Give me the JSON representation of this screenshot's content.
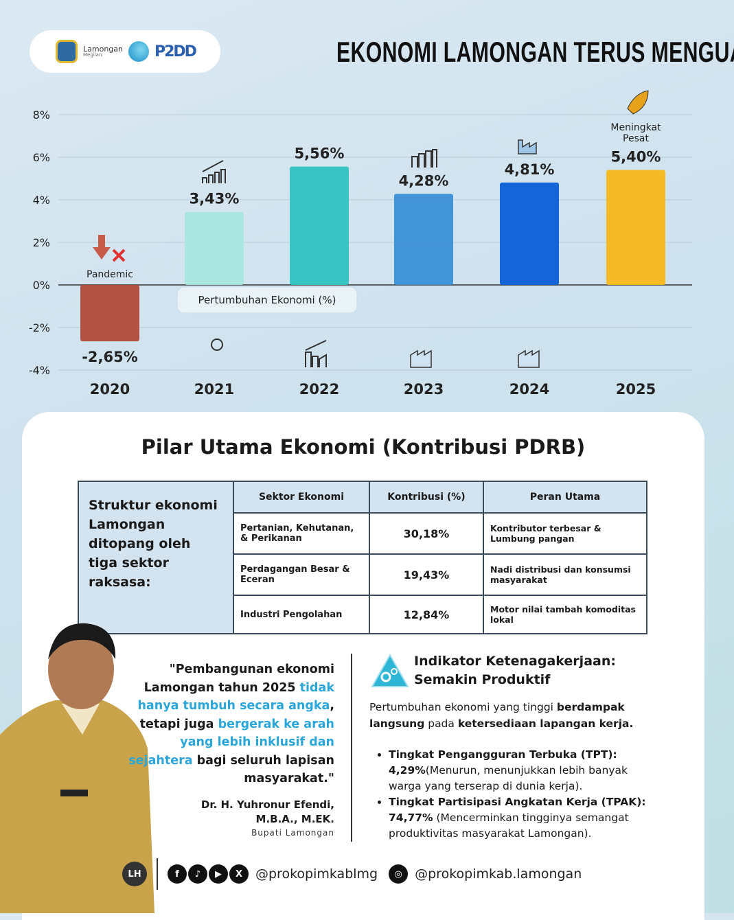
{
  "header": {
    "logo_text": "Lamongan",
    "logo_subtext": "Megilan",
    "partner_logo": "P2DD",
    "title": "EKONOMI LAMONGAN TERUS MENGUAT"
  },
  "chart_data": {
    "type": "bar",
    "categories": [
      "2020",
      "2021",
      "2022",
      "2023",
      "2024",
      "2025"
    ],
    "values": [
      -2.65,
      3.43,
      5.56,
      4.28,
      4.81,
      5.4
    ],
    "value_labels": [
      "-2,65%",
      "3,43%",
      "5,56%",
      "4,28%",
      "4,81%",
      "5,40%"
    ],
    "series_label": "Pertumbuhan Ekonomi (%)",
    "yticks": [
      "8%",
      "6%",
      "4%",
      "2%",
      "0%",
      "-2%",
      "-4%"
    ],
    "ylim": [
      -4,
      8
    ],
    "annotations": {
      "2020": "Pandemic",
      "2025": "Meningkat Pesat"
    },
    "colors": [
      "#b04a3a",
      "#a8e6de",
      "#2fc2c0",
      "#3a8fd6",
      "#0a5ed6",
      "#f7b81a"
    ],
    "grid": true
  },
  "section": {
    "title": "Pilar Utama Ekonomi (Kontribusi PDRB)"
  },
  "table": {
    "lead": "Struktur ekonomi Lamongan ditopang oleh tiga sektor raksasa:",
    "headers": [
      "Sektor Ekonomi",
      "Kontribusi (%)",
      "Peran Utama"
    ],
    "rows": [
      {
        "sektor": "Pertanian, Kehutanan, & Perikanan",
        "kontribusi": "30,18%",
        "peran": "Kontributor terbesar & Lumbung pangan"
      },
      {
        "sektor": "Perdagangan Besar & Eceran",
        "kontribusi": "19,43%",
        "peran": "Nadi distribusi dan konsumsi masyarakat"
      },
      {
        "sektor": "Industri Pengolahan",
        "kontribusi": "12,84%",
        "peran": "Motor nilai tambah komoditas lokal"
      }
    ]
  },
  "quote": {
    "p1": "\"Pembangunan ekonomi Lamongan tahun 2025 ",
    "h1": "tidak hanya tumbuh secara angka",
    "p2": ", tetapi juga ",
    "h2": "bergerak ke arah yang lebih inklusif dan sejahtera",
    "p3": " bagi seluruh lapisan masyarakat.\"",
    "author": "Dr. H. Yuhronur Efendi, M.B.A., M.EK.",
    "role": "Bupati Lamongan"
  },
  "indikator": {
    "title1": "Indikator Ketenagakerjaan:",
    "title2": "Semakin Produktif",
    "p_a": "Pertumbuhan ekonomi yang tinggi ",
    "p_b": "berdampak langsung",
    "p_c": " pada ",
    "p_d": "ketersediaan lapangan kerja.",
    "items": [
      {
        "label": "Tingkat Pengangguran Terbuka (TPT):",
        "value": "4,29%",
        "note": "(Menurun, menunjukkan lebih banyak warga yang terserap di dunia kerja)."
      },
      {
        "label": "Tingkat Partisipasi Angkatan Kerja (TPAK):",
        "value": "74,77%",
        "note": " (Mencerminkan tingginya semangat produktivitas masyarakat Lamongan)."
      }
    ]
  },
  "footer": {
    "handle1": "@prokopimkablmg",
    "handle2": "@prokopimkab.lamongan",
    "icons": [
      "facebook-icon",
      "tiktok-icon",
      "youtube-icon",
      "x-icon",
      "instagram-icon"
    ]
  }
}
